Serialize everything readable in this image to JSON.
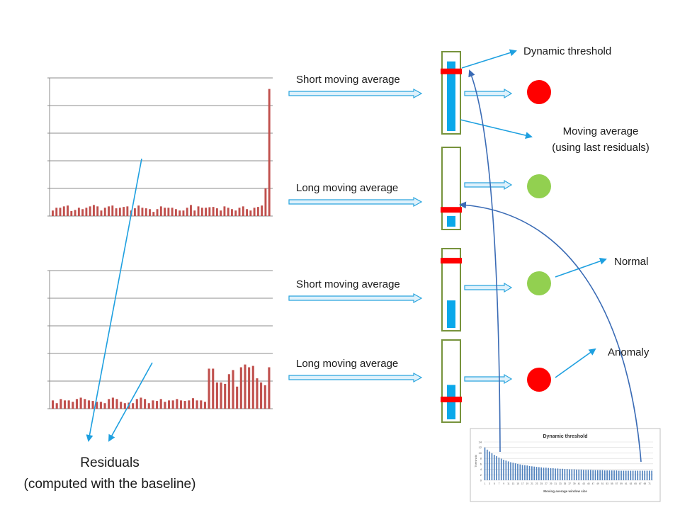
{
  "labels": {
    "row1": "Short moving average",
    "row2": "Long moving average",
    "row3": "Short moving average",
    "row4": "Long moving average",
    "dynamic_threshold": "Dynamic threshold",
    "moving_average_line1": "Moving average",
    "moving_average_line2": "(using last residuals)",
    "normal": "Normal",
    "anomaly": "Anomaly",
    "residuals_line1": "Residuals",
    "residuals_line2": "(computed with the baseline)"
  },
  "colors": {
    "residual_bar": "#c0504d",
    "arrow": "#1ea0e0",
    "fill_bar": "#0aa8ea",
    "gauge_border": "#77933c",
    "threshold_mark": "#ff0000",
    "indicator_red": "#ff0000",
    "indicator_green": "#92d050",
    "curve": "#3a6bb5"
  },
  "gauges": [
    {
      "name": "short-1",
      "fill_level": 0.91,
      "threshold_level": 0.78,
      "status": "anomaly"
    },
    {
      "name": "long-1",
      "fill_level": 0.14,
      "threshold_level": 0.22,
      "status": "normal"
    },
    {
      "name": "short-2",
      "fill_level": 0.36,
      "threshold_level": 0.88,
      "status": "normal"
    },
    {
      "name": "long-2",
      "fill_level": 0.45,
      "threshold_level": 0.26,
      "status": "anomaly"
    }
  ],
  "chart_data": [
    {
      "type": "bar",
      "name": "residuals-top",
      "title": "",
      "ylim": [
        0,
        5
      ],
      "gridlines": 5,
      "values": [
        0.2,
        0.3,
        0.3,
        0.35,
        0.38,
        0.18,
        0.22,
        0.3,
        0.25,
        0.3,
        0.35,
        0.4,
        0.35,
        0.2,
        0.3,
        0.35,
        0.38,
        0.28,
        0.3,
        0.33,
        0.35,
        0.2,
        0.28,
        0.38,
        0.3,
        0.28,
        0.25,
        0.15,
        0.25,
        0.35,
        0.3,
        0.3,
        0.3,
        0.25,
        0.2,
        0.2,
        0.3,
        0.4,
        0.2,
        0.35,
        0.3,
        0.3,
        0.32,
        0.33,
        0.28,
        0.2,
        0.35,
        0.3,
        0.25,
        0.2,
        0.3,
        0.35,
        0.25,
        0.2,
        0.3,
        0.33,
        0.38,
        1.0,
        4.6
      ]
    },
    {
      "type": "bar",
      "name": "residuals-bottom",
      "title": "",
      "ylim": [
        0,
        5
      ],
      "gridlines": 5,
      "values": [
        0.3,
        0.2,
        0.35,
        0.3,
        0.3,
        0.25,
        0.35,
        0.4,
        0.35,
        0.3,
        0.28,
        0.25,
        0.25,
        0.2,
        0.35,
        0.4,
        0.35,
        0.25,
        0.2,
        0.22,
        0.2,
        0.35,
        0.4,
        0.35,
        0.2,
        0.3,
        0.28,
        0.35,
        0.25,
        0.3,
        0.3,
        0.35,
        0.3,
        0.28,
        0.3,
        0.38,
        0.3,
        0.3,
        0.25,
        1.45,
        1.45,
        0.95,
        0.95,
        0.9,
        1.25,
        1.4,
        0.8,
        1.5,
        1.6,
        1.5,
        1.55,
        1.1,
        0.95,
        0.85,
        1.5
      ]
    },
    {
      "type": "bar",
      "name": "dynamic-threshold-chart",
      "title": "Dynamic threshold",
      "xlabel": "Moving average window size",
      "ylabel": "Threshold",
      "ylim": [
        0,
        14
      ],
      "y_ticks": [
        "14",
        "12",
        "10",
        "8",
        "6",
        "4",
        "2",
        "0"
      ],
      "values": [
        12,
        11.2,
        10.5,
        9.9,
        9.3,
        8.8,
        8.3,
        7.9,
        7.5,
        7.2,
        6.9,
        6.6,
        6.4,
        6.2,
        6.0,
        5.8,
        5.6,
        5.5,
        5.4,
        5.2,
        5.1,
        5.0,
        4.9,
        4.8,
        4.7,
        4.6,
        4.6,
        4.5,
        4.4,
        4.4,
        4.3,
        4.3,
        4.2,
        4.2,
        4.1,
        4.1,
        4.0,
        4.0,
        4.0,
        3.9,
        3.9,
        3.9,
        3.8,
        3.8,
        3.8,
        3.8,
        3.7,
        3.7,
        3.7,
        3.7,
        3.7,
        3.6,
        3.6,
        3.6,
        3.6,
        3.6,
        3.6,
        3.5,
        3.5,
        3.5,
        3.5,
        3.5,
        3.5,
        3.5,
        3.5,
        3.5,
        3.5,
        3.5,
        3.5,
        3.5,
        3.5,
        3.5
      ],
      "x_tick_labels": [
        "1",
        "3",
        "5",
        "7",
        "9",
        "11",
        "13",
        "15",
        "17",
        "19",
        "21",
        "23",
        "25",
        "27",
        "29",
        "31",
        "33",
        "35",
        "37",
        "39",
        "41",
        "43",
        "45",
        "47",
        "49",
        "51",
        "53",
        "55",
        "57",
        "59",
        "61",
        "63",
        "65",
        "67",
        "69",
        "71"
      ]
    }
  ]
}
